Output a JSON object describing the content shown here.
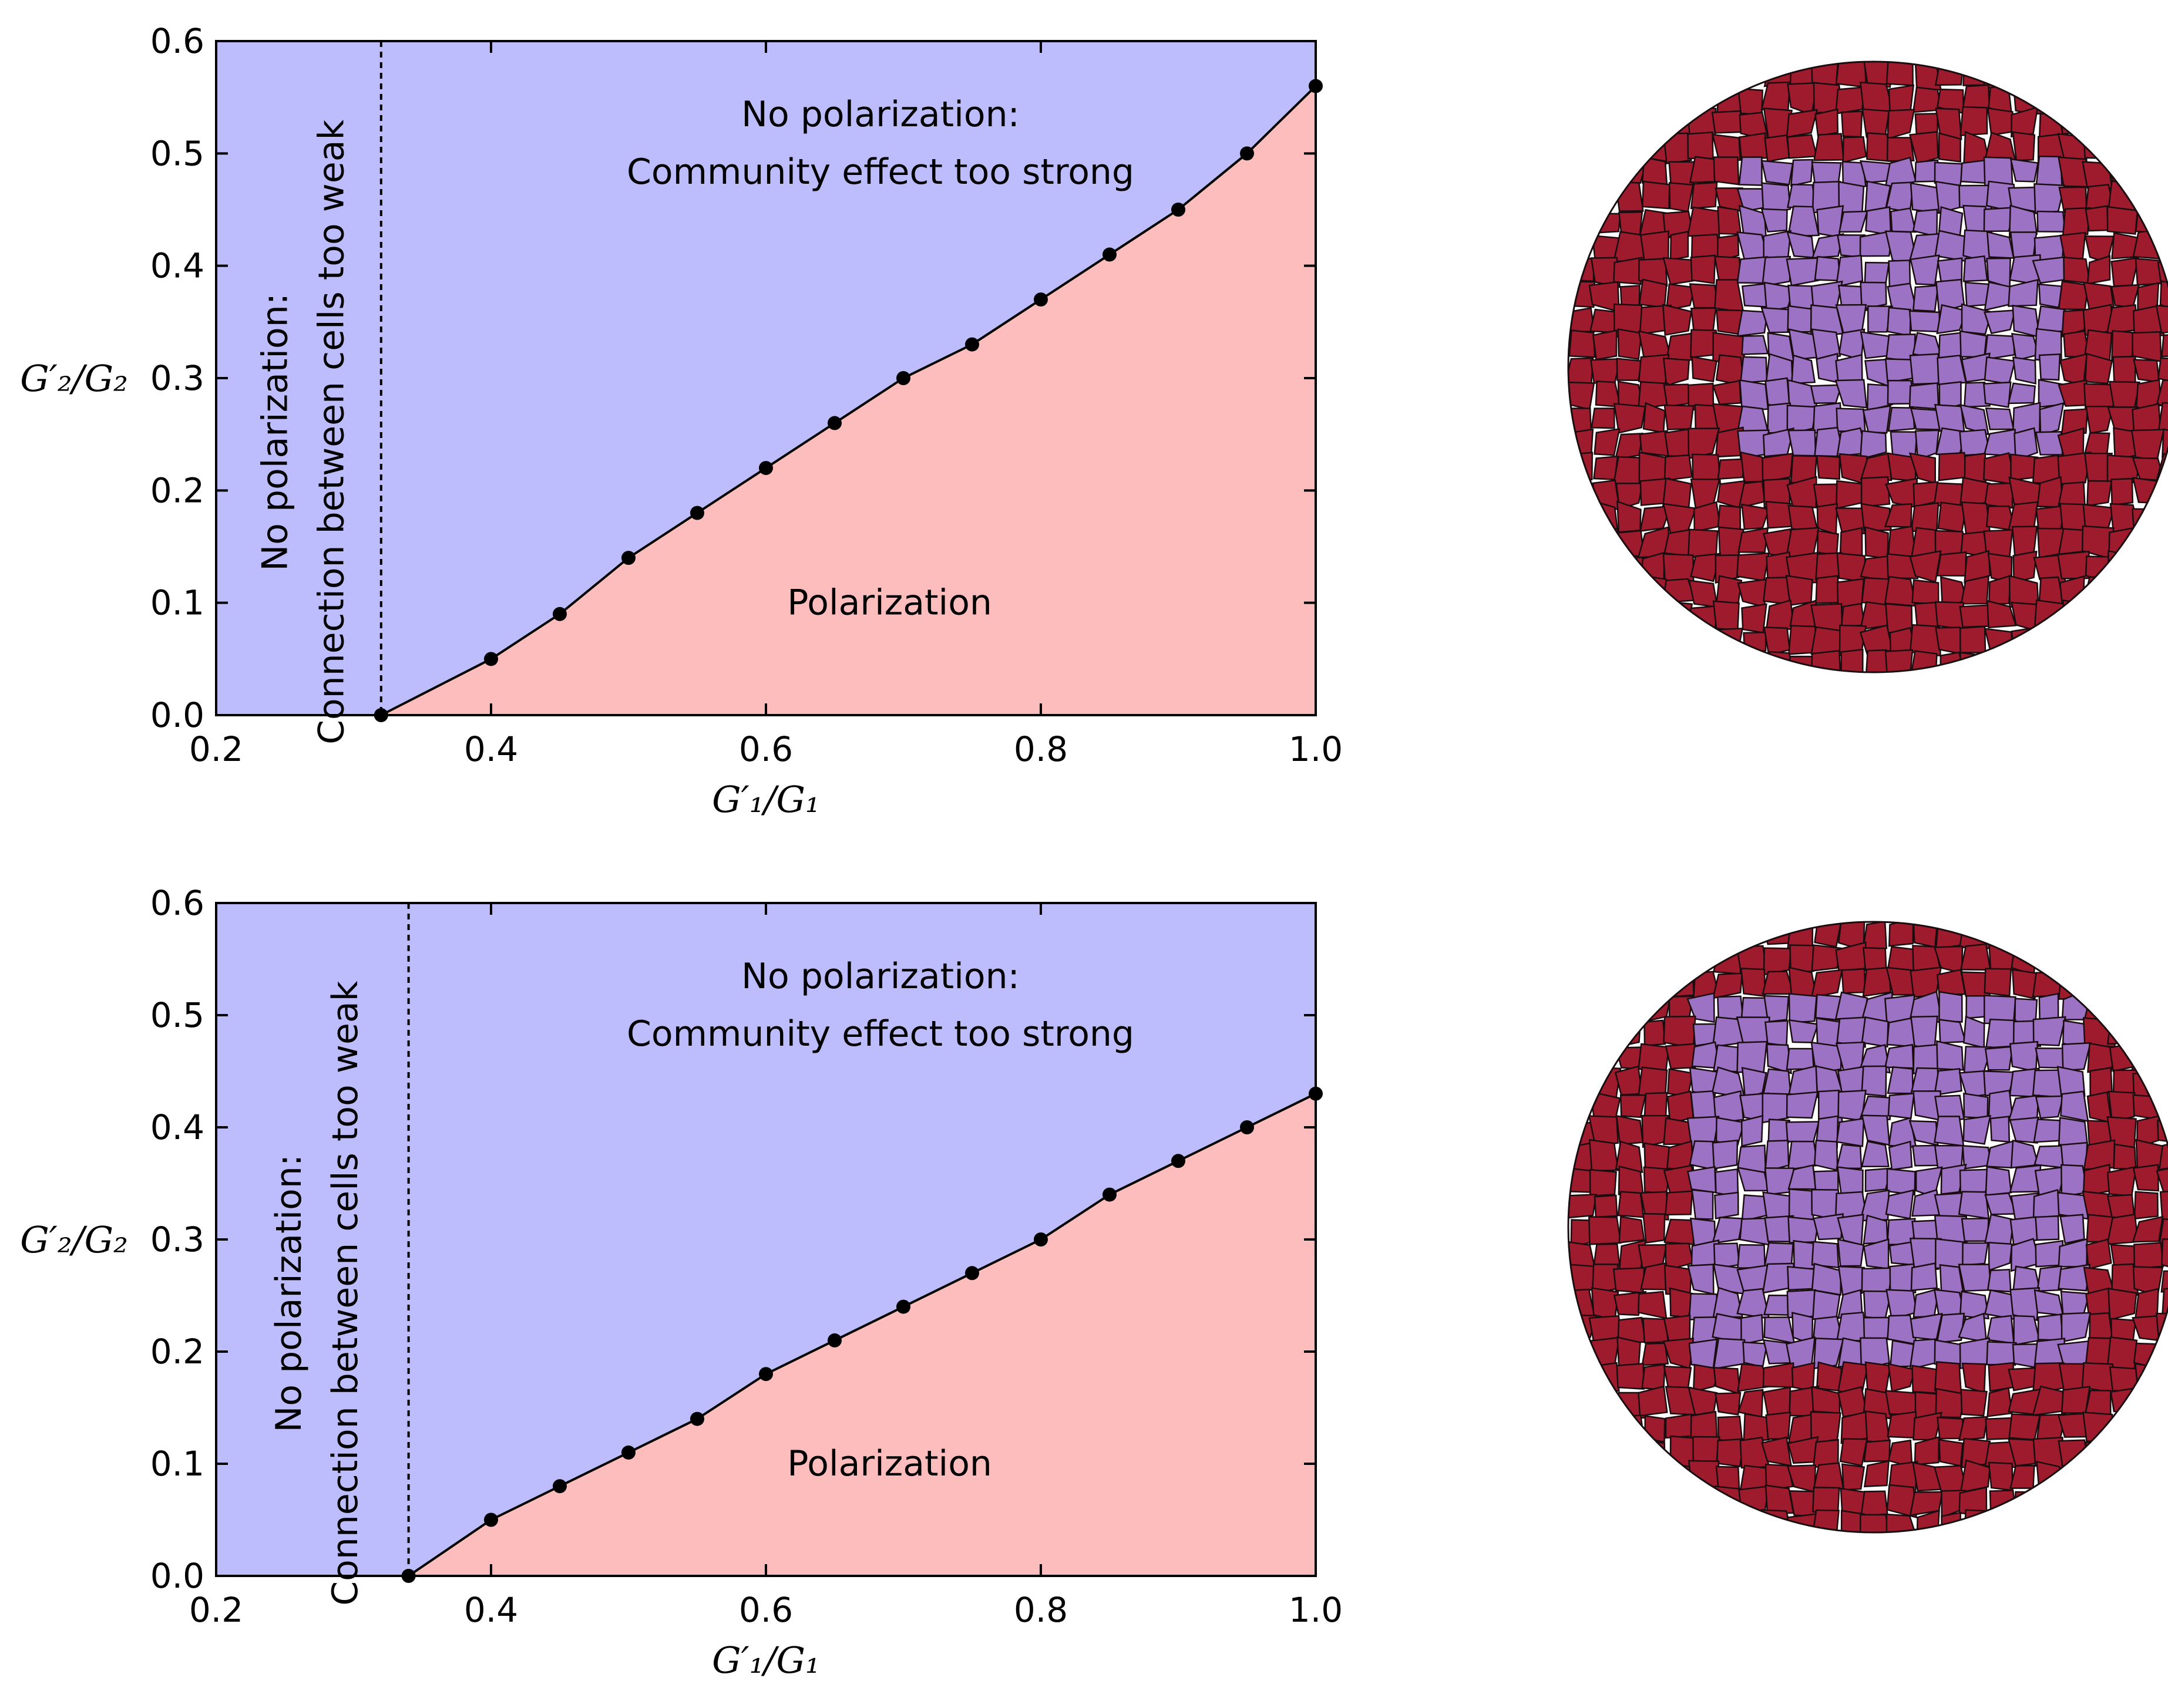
{
  "chart_data": [
    {
      "type": "line",
      "title": "",
      "xlabel": "G′₁/G₁",
      "ylabel": "G′₂/G₂",
      "xlim": [
        0.2,
        1.0
      ],
      "ylim": [
        0.0,
        0.6
      ],
      "xticks": [
        "0.2",
        "0.4",
        "0.6",
        "0.8",
        "1.0"
      ],
      "yticks": [
        "0.0",
        "0.1",
        "0.2",
        "0.3",
        "0.4",
        "0.5",
        "0.6"
      ],
      "x": [
        0.32,
        0.4,
        0.45,
        0.5,
        0.55,
        0.6,
        0.65,
        0.7,
        0.75,
        0.8,
        0.85,
        0.9,
        0.95,
        1.0
      ],
      "y": [
        0.0,
        0.05,
        0.09,
        0.14,
        0.18,
        0.22,
        0.26,
        0.3,
        0.33,
        0.37,
        0.41,
        0.45,
        0.5,
        0.56
      ],
      "threshold_x": 0.32,
      "regions": {
        "community": [
          "No polarization:",
          "Community effect too strong"
        ],
        "connection": [
          "No polarization:",
          "Connection between cells too weak"
        ],
        "polarization": "Polarization"
      },
      "colors": {
        "no_polarization": "#bdbdfd",
        "polarization": "#fdbdbd"
      }
    },
    {
      "type": "line",
      "title": "",
      "xlabel": "G′₁/G₁",
      "ylabel": "G′₂/G₂",
      "xlim": [
        0.2,
        1.0
      ],
      "ylim": [
        0.0,
        0.6
      ],
      "xticks": [
        "0.2",
        "0.4",
        "0.6",
        "0.8",
        "1.0"
      ],
      "yticks": [
        "0.0",
        "0.1",
        "0.2",
        "0.3",
        "0.4",
        "0.5",
        "0.6"
      ],
      "x": [
        0.34,
        0.4,
        0.45,
        0.5,
        0.55,
        0.6,
        0.65,
        0.7,
        0.75,
        0.8,
        0.85,
        0.9,
        0.95,
        1.0
      ],
      "y": [
        0.0,
        0.05,
        0.08,
        0.11,
        0.14,
        0.18,
        0.21,
        0.24,
        0.27,
        0.3,
        0.34,
        0.37,
        0.4,
        0.43
      ],
      "threshold_x": 0.34,
      "regions": {
        "community": [
          "No polarization:",
          "Community effect too strong"
        ],
        "connection": [
          "No polarization:",
          "Connection between cells too weak"
        ],
        "polarization": "Polarization"
      },
      "colors": {
        "no_polarization": "#bdbdfd",
        "polarization": "#fdbdbd"
      }
    }
  ],
  "tissues": [
    {
      "outer_color": "#9e1b2e",
      "inner_color": "#9b72c4",
      "cell_border": "#1a0d10"
    },
    {
      "outer_color": "#9e1b2e",
      "inner_color": "#9b72c4",
      "cell_border": "#1a0d10"
    }
  ]
}
